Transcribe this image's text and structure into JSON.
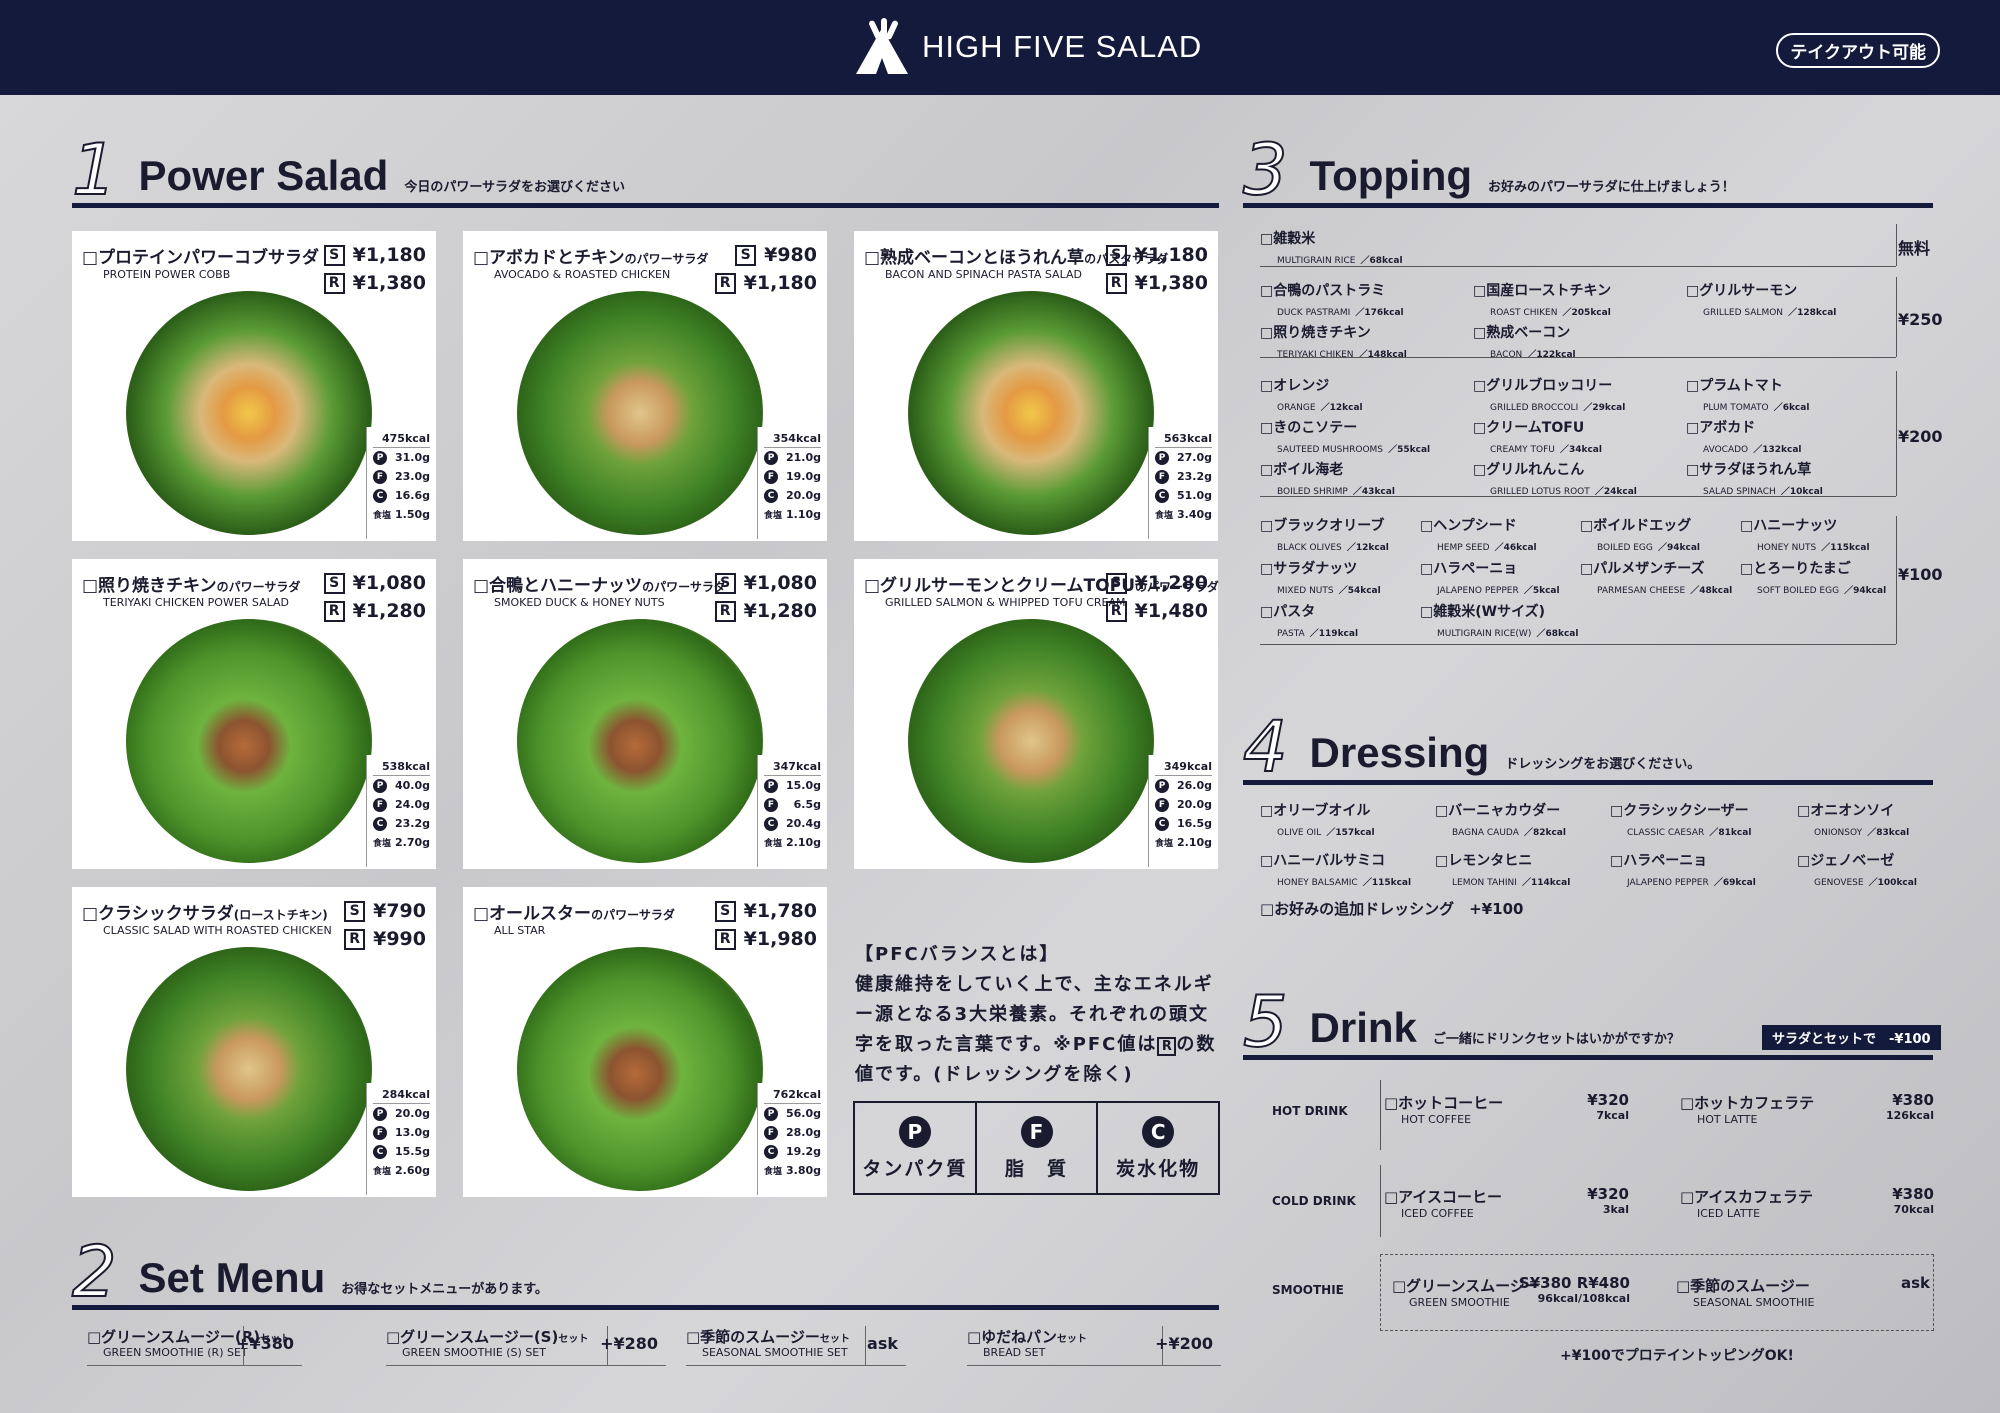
{
  "header": {
    "brand": "HIGH FIVE SALAD",
    "takeout": "テイクアウト可能"
  },
  "sec1": {
    "num": "1",
    "title": "Power Salad",
    "sub": "今日のパワーサラダをお選びください"
  },
  "salads": [
    {
      "name": "□プロテインパワーコブサラダ",
      "name_small": "",
      "en": "PROTEIN POWER COBB",
      "s": "¥1,180",
      "r": "¥1,380",
      "kcal": "475kcal",
      "p": "31.0g",
      "f": "23.0g",
      "c": "16.6g",
      "salt": "1.50g"
    },
    {
      "name": "□アボカドとチキン",
      "name_small": "のパワーサラダ",
      "en": "AVOCADO & ROASTED CHICKEN",
      "s": "¥980",
      "r": "¥1,180",
      "kcal": "354kcal",
      "p": "21.0g",
      "f": "19.0g",
      "c": "20.0g",
      "salt": "1.10g"
    },
    {
      "name": "□熟成ベーコンとほうれん草",
      "name_small": "のパスタサラダ",
      "en": "BACON AND SPINACH PASTA SALAD",
      "s": "¥1,180",
      "r": "¥1,380",
      "kcal": "563kcal",
      "p": "27.0g",
      "f": "23.2g",
      "c": "51.0g",
      "salt": "3.40g"
    },
    {
      "name": "□照り焼きチキン",
      "name_small": "のパワーサラダ",
      "en": "TERIYAKI CHICKEN POWER SALAD",
      "s": "¥1,080",
      "r": "¥1,280",
      "kcal": "538kcal",
      "p": "40.0g",
      "f": "24.0g",
      "c": "23.2g",
      "salt": "2.70g"
    },
    {
      "name": "□合鴨とハニーナッツ",
      "name_small": "のパワーサラダ",
      "en": "SMOKED DUCK & HONEY NUTS",
      "s": "¥1,080",
      "r": "¥1,280",
      "kcal": "347kcal",
      "p": "15.0g",
      "f": "6.5g",
      "c": "20.4g",
      "salt": "2.10g"
    },
    {
      "name": "□グリルサーモンとクリームTOFU",
      "name_small": "のパワーサラダ",
      "en": "GRILLED SALMON & WHIPPED TOFU CREAM",
      "s": "¥1,280",
      "r": "¥1,480",
      "kcal": "349kcal",
      "p": "26.0g",
      "f": "20.0g",
      "c": "16.5g",
      "salt": "2.10g"
    },
    {
      "name": "□クラシックサラダ",
      "name_small": "(ローストチキン)",
      "en": "CLASSIC SALAD WITH ROASTED CHICKEN",
      "s": "¥790",
      "r": "¥990",
      "kcal": "284kcal",
      "p": "20.0g",
      "f": "13.0g",
      "c": "15.5g",
      "salt": "2.60g"
    },
    {
      "name": "□オールスター",
      "name_small": "のパワーサラダ",
      "en": "ALL STAR",
      "s": "¥1,780",
      "r": "¥1,980",
      "kcal": "762kcal",
      "p": "56.0g",
      "f": "28.0g",
      "c": "19.2g",
      "salt": "3.80g"
    }
  ],
  "labels": {
    "s": "S",
    "r": "R",
    "p": "P",
    "f": "F",
    "c": "C",
    "salt": "食塩"
  },
  "pfc": {
    "title": "【PFCバランスとは】",
    "body": "健康維持をしていく上で、主なエネルギー源となる3大栄養素。それぞれの頭文字を取った言葉です。※PFC値は",
    "body_mark": "R",
    "body_end": "の数値です。(ドレッシングを除く)",
    "p_label": "タンパク質",
    "f_label": "脂　質",
    "c_label": "炭水化物"
  },
  "sec2": {
    "num": "2",
    "title": "Set Menu",
    "sub": "お得なセットメニューがあります。"
  },
  "sets": [
    {
      "name": "□グリーンスムージー(R)",
      "small": "セット",
      "en": "GREEN SMOOTHIE (R) SET",
      "price": "+¥380"
    },
    {
      "name": "□グリーンスムージー(S)",
      "small": "セット",
      "en": "GREEN SMOOTHIE (S) SET",
      "price": "+¥280"
    },
    {
      "name": "□季節のスムージー",
      "small": "セット",
      "en": "SEASONAL SMOOTHIE SET",
      "price": "ask"
    },
    {
      "name": "□ゆだねパン",
      "small": "セット",
      "en": "BREAD SET",
      "price": "+¥200"
    }
  ],
  "sec3": {
    "num": "3",
    "title": "Topping",
    "sub": "お好みのパワーサラダに仕上げましょう！"
  },
  "toppings": {
    "free": {
      "price": "無料",
      "items": [
        {
          "j": "□雑穀米",
          "e": "MULTIGRAIN RICE",
          "k": "／68kcal"
        }
      ]
    },
    "t250": {
      "price": "¥250",
      "items": [
        {
          "j": "□合鴨のパストラミ",
          "e": "DUCK PASTRAMI",
          "k": "／176kcal"
        },
        {
          "j": "□国産ローストチキン",
          "e": "ROAST CHIKEN",
          "k": "／205kcal"
        },
        {
          "j": "□グリルサーモン",
          "e": "GRILLED SALMON",
          "k": "／128kcal"
        },
        {
          "j": "□照り焼きチキン",
          "e": "TERIYAKI CHIKEN",
          "k": "／148kcal"
        },
        {
          "j": "□熟成ベーコン",
          "e": "BACON",
          "k": "／122kcal"
        }
      ]
    },
    "t200": {
      "price": "¥200",
      "items": [
        {
          "j": "□オレンジ",
          "e": "ORANGE",
          "k": "／12kcal"
        },
        {
          "j": "□グリルブロッコリー",
          "e": "GRILLED BROCCOLI",
          "k": "／29kcal"
        },
        {
          "j": "□プラムトマト",
          "e": "PLUM TOMATO",
          "k": "／6kcal"
        },
        {
          "j": "□きのこソテー",
          "e": "SAUTEED MUSHROOMS",
          "k": "／55kcal"
        },
        {
          "j": "□クリームTOFU",
          "e": "CREAMY TOFU",
          "k": "／34kcal"
        },
        {
          "j": "□アボカド",
          "e": "AVOCADO",
          "k": "／132kcal"
        },
        {
          "j": "□ボイル海老",
          "e": "BOILED SHRIMP",
          "k": "／43kcal"
        },
        {
          "j": "□グリルれんこん",
          "e": "GRILLED LOTUS ROOT",
          "k": "／24kcal"
        },
        {
          "j": "□サラダほうれん草",
          "e": "SALAD SPINACH",
          "k": "／10kcal"
        }
      ]
    },
    "t100": {
      "price": "¥100",
      "items": [
        {
          "j": "□ブラックオリーブ",
          "e": "BLACK OLIVES",
          "k": "／12kcal"
        },
        {
          "j": "□ヘンプシード",
          "e": "HEMP SEED",
          "k": "／46kcal"
        },
        {
          "j": "□ボイルドエッグ",
          "e": "BOILED EGG",
          "k": "／94kcal"
        },
        {
          "j": "□ハニーナッツ",
          "e": "HONEY NUTS",
          "k": "／115kcal"
        },
        {
          "j": "□サラダナッツ",
          "e": "MIXED NUTS",
          "k": "／54kcal"
        },
        {
          "j": "□ハラペーニョ",
          "e": "JALAPENO PEPPER",
          "k": "／5kcal"
        },
        {
          "j": "□パルメザンチーズ",
          "e": "PARMESAN CHEESE",
          "k": "／48kcal"
        },
        {
          "j": "□とろーりたまご",
          "e": "SOFT BOILED EGG",
          "k": "／94kcal"
        },
        {
          "j": "□パスタ",
          "e": "PASTA",
          "k": "／119kcal"
        },
        {
          "j": "□雑穀米(Wサイズ)",
          "e": "MULTIGRAIN RICE(W)",
          "k": "／68kcal"
        }
      ]
    }
  },
  "sec4": {
    "num": "4",
    "title": "Dressing",
    "sub": "ドレッシングをお選びください。"
  },
  "dressings": [
    {
      "j": "□オリーブオイル",
      "e": "OLIVE OIL",
      "k": "／157kcal"
    },
    {
      "j": "□バーニャカウダー",
      "e": "BAGNA CAUDA",
      "k": "／82kcal"
    },
    {
      "j": "□クラシックシーザー",
      "e": "CLASSIC CAESAR",
      "k": "／81kcal"
    },
    {
      "j": "□オニオンソイ",
      "e": "ONIONSOY",
      "k": "／83kcal"
    },
    {
      "j": "□ハニーバルサミコ",
      "e": "HONEY BALSAMIC",
      "k": "／115kcal"
    },
    {
      "j": "□レモンタヒニ",
      "e": "LEMON TAHINI",
      "k": "／114kcal"
    },
    {
      "j": "□ハラペーニョ",
      "e": "JALAPENO PEPPER",
      "k": "／69kcal"
    },
    {
      "j": "□ジェノベーゼ",
      "e": "GENOVESE",
      "k": "／100kcal"
    }
  ],
  "dressing_extra": "□お好みの追加ドレッシング　+¥100",
  "sec5": {
    "num": "5",
    "title": "Drink",
    "sub": "ご一緒にドリンクセットはいかがですか？",
    "set_badge": "サラダとセットで　-¥100"
  },
  "drink_cats": {
    "hot": "HOT DRINK",
    "cold": "COLD DRINK",
    "smoothie": "SMOOTHIE"
  },
  "drinks": {
    "hot": [
      {
        "j": "□ホットコーヒー",
        "e": "HOT COFFEE",
        "p": "¥320",
        "k": "7kcal"
      },
      {
        "j": "□ホットカフェラテ",
        "e": "HOT LATTE",
        "p": "¥380",
        "k": "126kcal"
      }
    ],
    "cold": [
      {
        "j": "□アイスコーヒー",
        "e": "ICED COFFEE",
        "p": "¥320",
        "k": "3kal"
      },
      {
        "j": "□アイスカフェラテ",
        "e": "ICED LATTE",
        "p": "¥380",
        "k": "70kcal"
      }
    ],
    "smoothie": [
      {
        "j": "□グリーンスムージー",
        "e": "GREEN SMOOTHIE",
        "p": "S¥380  R¥480",
        "k": "96kcal/108kcal"
      },
      {
        "j": "□季節のスムージー",
        "e": "SEASONAL SMOOTHIE",
        "p": "ask",
        "k": ""
      }
    ]
  },
  "protein_note": "+¥100でプロテイントッピングOK!",
  "colors": {
    "navy": "#141a3c",
    "paper": "#ffffff"
  },
  "icons": [
    "logo-icon",
    "pfc-circle-icons"
  ]
}
